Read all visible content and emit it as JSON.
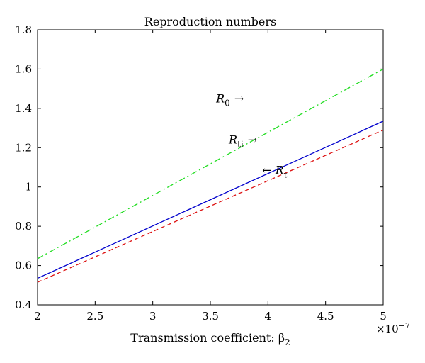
{
  "chart_data": {
    "type": "line",
    "title": "Reproduction numbers",
    "xlabel": "Transmission coefficient: β",
    "xlabel_sub": "2",
    "x_exponent_label": "×10",
    "x_exponent": "−7",
    "xlim": [
      2,
      5
    ],
    "ylim": [
      0.4,
      1.8
    ],
    "x_ticks": [
      2,
      2.5,
      3,
      3.5,
      4,
      4.5,
      5
    ],
    "x_tick_labels": [
      "2",
      "2.5",
      "3",
      "3.5",
      "4",
      "4.5",
      "5"
    ],
    "y_ticks": [
      0.4,
      0.6,
      0.8,
      1.0,
      1.2,
      1.4,
      1.6,
      1.8
    ],
    "y_tick_labels": [
      "0.4",
      "0.6",
      "0.8",
      "1",
      "1.2",
      "1.4",
      "1.6",
      "1.8"
    ],
    "grid": false,
    "series": [
      {
        "name": "R0",
        "label_main": "R",
        "label_sub": "0",
        "label_arrow": "→",
        "arrow_side": "right",
        "label_at": [
          3.55,
          1.43
        ],
        "color": "#22dd22",
        "dash": "dot-dash",
        "x": [
          2,
          5
        ],
        "y": [
          0.635,
          1.6
        ]
      },
      {
        "name": "Rti",
        "label_main": "R",
        "label_sub": "ti",
        "label_arrow": "→",
        "arrow_side": "right",
        "label_at": [
          3.66,
          1.22
        ],
        "color": "#0000cc",
        "dash": "solid",
        "x": [
          2,
          5
        ],
        "y": [
          0.535,
          1.335
        ]
      },
      {
        "name": "Rt",
        "label_main": "R",
        "label_sub": "t",
        "label_arrow": "←",
        "arrow_side": "left",
        "label_at": [
          3.95,
          1.065
        ],
        "color": "#dd1111",
        "dash": "dashed",
        "x": [
          2,
          5
        ],
        "y": [
          0.515,
          1.29
        ]
      }
    ]
  }
}
